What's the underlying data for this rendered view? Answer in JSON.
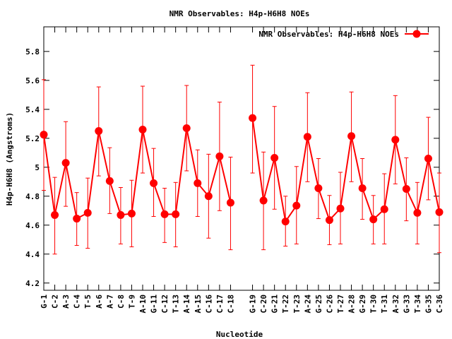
{
  "chart_data": {
    "type": "line",
    "title": "NMR Observables: H4p-H6H8 NOEs",
    "xlabel": "Nucleotide",
    "ylabel": "H4p-H6H8 (Angstroms)",
    "ylim": [
      4.15,
      5.97
    ],
    "y_ticks": [
      4.2,
      4.4,
      4.6,
      4.8,
      5,
      5.2,
      5.4,
      5.6,
      5.8
    ],
    "y_tick_labels": [
      "4.2",
      "4.4",
      "4.6",
      "4.8",
      "5",
      "5.2",
      "5.4",
      "5.6",
      "5.8"
    ],
    "legend_position": "top-right",
    "grid": false,
    "colors": {
      "series": "#ff0000"
    },
    "categories": [
      "G-1",
      "C-2",
      "A-3",
      "C-4",
      "T-5",
      "A-6",
      "A-7",
      "C-8",
      "T-9",
      "A-10",
      "G-11",
      "C-12",
      "T-13",
      "A-14",
      "A-15",
      "C-16",
      "C-17",
      "C-18",
      "",
      "G-19",
      "C-20",
      "G-21",
      "T-22",
      "T-23",
      "A-24",
      "G-25",
      "C-26",
      "T-27",
      "A-28",
      "G-29",
      "T-30",
      "T-31",
      "A-32",
      "G-33",
      "T-34",
      "G-35",
      "C-36"
    ],
    "series": [
      {
        "name": "NMR Observables: H4p-H6H8 NOEs",
        "values": [
          5.225,
          4.67,
          5.03,
          4.645,
          4.685,
          5.25,
          4.905,
          4.67,
          4.68,
          5.26,
          4.89,
          4.675,
          4.675,
          5.27,
          4.89,
          4.8,
          5.075,
          4.755,
          null,
          5.34,
          4.77,
          5.065,
          4.625,
          4.735,
          5.21,
          4.855,
          4.635,
          4.715,
          5.215,
          4.855,
          4.64,
          4.71,
          5.19,
          4.85,
          4.685,
          5.06,
          4.69
        ],
        "error_low": [
          4.84,
          4.4,
          4.73,
          4.46,
          4.44,
          4.94,
          4.68,
          4.47,
          4.45,
          4.96,
          4.66,
          4.48,
          4.45,
          4.975,
          4.66,
          4.51,
          4.7,
          4.43,
          null,
          4.96,
          4.43,
          4.71,
          4.455,
          4.47,
          4.9,
          4.645,
          4.465,
          4.47,
          4.9,
          4.64,
          4.47,
          4.47,
          4.885,
          4.63,
          4.47,
          4.775,
          4.41
        ],
        "error_high": [
          5.605,
          4.93,
          5.315,
          4.825,
          4.925,
          5.555,
          5.135,
          4.86,
          4.91,
          5.56,
          5.13,
          4.855,
          4.895,
          5.565,
          5.12,
          5.09,
          5.45,
          5.07,
          null,
          5.705,
          5.105,
          5.42,
          4.8,
          5.005,
          5.515,
          5.06,
          4.805,
          4.965,
          5.52,
          5.06,
          4.805,
          4.955,
          5.495,
          5.065,
          4.895,
          5.345,
          4.96
        ]
      }
    ]
  }
}
